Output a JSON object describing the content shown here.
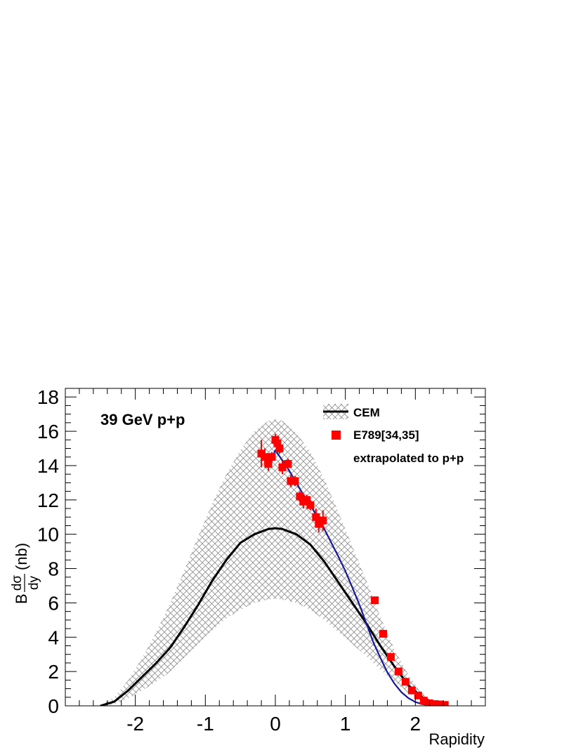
{
  "chart_data": {
    "type": "line",
    "xlabel": "Rapidity",
    "ylabel_prefix": "B",
    "ylabel_num": "dσ",
    "ylabel_den": "dy",
    "ylabel_unit": "(nb)",
    "xlim": [
      -3,
      3
    ],
    "ylim": [
      0,
      18.5
    ],
    "x_ticks": [
      -2,
      -1,
      0,
      1,
      2
    ],
    "x_tick_labels": [
      "-2",
      "-1",
      "0",
      "1",
      "2"
    ],
    "y_ticks": [
      0,
      2,
      4,
      6,
      8,
      10,
      12,
      14,
      16,
      18
    ],
    "y_tick_labels": [
      "0",
      "2",
      "4",
      "6",
      "8",
      "10",
      "12",
      "14",
      "16",
      "18"
    ],
    "annotation": "39 GeV p+p",
    "legend": [
      {
        "label": "CEM",
        "symbol": "hatched-band-line"
      },
      {
        "label": "E789[34,35]",
        "symbol": "red-square"
      },
      {
        "label": "extrapolated to p+p",
        "symbol": "none"
      }
    ],
    "colors": {
      "data": "#ff0000",
      "fit": "#1a1a99",
      "cem": "#000000",
      "band": "#888888"
    },
    "series": [
      {
        "name": "CEM",
        "x": [
          -2.5,
          -2.3,
          -2.1,
          -1.9,
          -1.7,
          -1.5,
          -1.3,
          -1.1,
          -0.9,
          -0.7,
          -0.5,
          -0.3,
          -0.1,
          0.0,
          0.1,
          0.3,
          0.5,
          0.7,
          0.9,
          1.1,
          1.3,
          1.5,
          1.7,
          1.9,
          2.1,
          2.3,
          2.45
        ],
        "y": [
          0.0,
          0.25,
          0.9,
          1.7,
          2.5,
          3.4,
          4.6,
          5.9,
          7.3,
          8.5,
          9.5,
          10.0,
          10.3,
          10.35,
          10.3,
          10.0,
          9.4,
          8.4,
          7.2,
          6.0,
          4.8,
          3.5,
          2.3,
          1.2,
          0.5,
          0.1,
          0.0
        ]
      },
      {
        "name": "CEM band upper",
        "x": [
          -2.5,
          -2.3,
          -2.1,
          -1.9,
          -1.7,
          -1.5,
          -1.3,
          -1.1,
          -0.9,
          -0.7,
          -0.5,
          -0.3,
          -0.1,
          0.0,
          0.1,
          0.3,
          0.5,
          0.7,
          0.9,
          1.1,
          1.3,
          1.5,
          1.7,
          1.9,
          2.1,
          2.3,
          2.45
        ],
        "y": [
          0.0,
          0.5,
          1.5,
          2.8,
          4.3,
          6.0,
          7.9,
          9.9,
          11.8,
          13.5,
          14.9,
          16.0,
          16.6,
          16.7,
          16.6,
          15.9,
          14.8,
          13.2,
          11.3,
          9.3,
          7.3,
          5.2,
          3.3,
          1.8,
          0.7,
          0.15,
          0.0
        ]
      },
      {
        "name": "CEM band lower",
        "x": [
          -2.5,
          -2.3,
          -2.1,
          -1.9,
          -1.7,
          -1.5,
          -1.3,
          -1.1,
          -0.9,
          -0.7,
          -0.5,
          -0.3,
          -0.1,
          0.0,
          0.1,
          0.3,
          0.5,
          0.7,
          0.9,
          1.1,
          1.3,
          1.5,
          1.7,
          1.9,
          2.1,
          2.3,
          2.45
        ],
        "y": [
          0.0,
          0.1,
          0.45,
          0.9,
          1.4,
          2.0,
          2.8,
          3.6,
          4.4,
          5.1,
          5.6,
          6.0,
          6.2,
          6.25,
          6.2,
          6.0,
          5.6,
          5.0,
          4.3,
          3.6,
          2.9,
          2.1,
          1.4,
          0.75,
          0.3,
          0.05,
          0.0
        ]
      },
      {
        "name": "E789[34,35]",
        "x": [
          -0.2,
          -0.15,
          -0.1,
          -0.05,
          0.0,
          0.03,
          0.06,
          0.1,
          0.18,
          0.22,
          0.28,
          0.35,
          0.4,
          0.45,
          0.5,
          0.58,
          0.62,
          0.68,
          1.42,
          1.54,
          1.65,
          1.76,
          1.86,
          1.95,
          2.04,
          2.12,
          2.2,
          2.28,
          2.35,
          2.42
        ],
        "y": [
          14.7,
          14.5,
          14.1,
          14.5,
          15.5,
          15.3,
          15.0,
          13.9,
          14.1,
          13.1,
          13.1,
          12.2,
          11.9,
          12.0,
          11.7,
          11.0,
          10.6,
          10.8,
          6.15,
          4.2,
          2.85,
          2.0,
          1.4,
          0.9,
          0.6,
          0.3,
          0.15,
          0.1,
          0.08,
          0.05
        ],
        "yerr": [
          0.8,
          0.5,
          0.4,
          0.3,
          0.35,
          0.3,
          0.3,
          0.4,
          0.3,
          0.35,
          0.3,
          0.3,
          0.4,
          0.3,
          0.3,
          0.5,
          0.5,
          0.6,
          0.15,
          0.15,
          0.15,
          0.1,
          0.1,
          0.1,
          0.1,
          0.08,
          0.06,
          0.05,
          0.05,
          0.05
        ]
      },
      {
        "name": "fit",
        "x": [
          -0.1,
          0.0,
          0.1,
          0.2,
          0.3,
          0.4,
          0.5,
          0.6,
          0.7,
          0.8,
          0.9,
          1.0,
          1.1,
          1.2,
          1.3,
          1.4,
          1.5,
          1.6,
          1.7,
          1.8,
          1.9,
          2.0,
          2.1,
          2.2,
          2.3,
          2.4
        ],
        "y": [
          14.0,
          14.9,
          14.3,
          13.7,
          13.0,
          12.3,
          11.7,
          11.0,
          10.3,
          9.5,
          8.7,
          7.85,
          6.9,
          5.9,
          4.8,
          3.7,
          2.8,
          1.95,
          1.3,
          0.8,
          0.45,
          0.22,
          0.1,
          0.04,
          0.01,
          0.0
        ]
      }
    ]
  }
}
